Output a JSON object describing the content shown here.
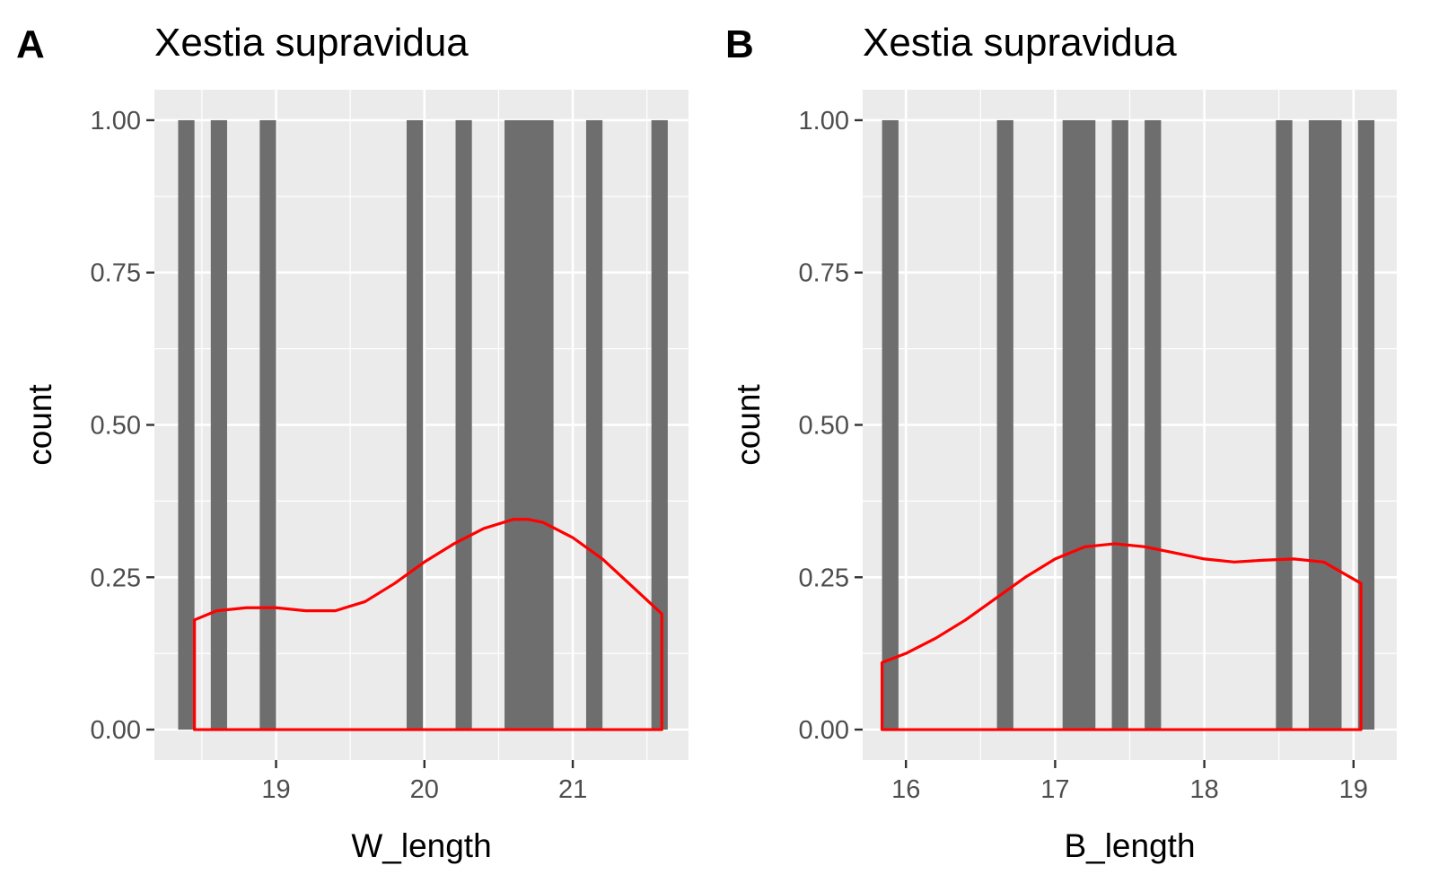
{
  "chart_data": [
    {
      "type": "bar",
      "panel_label": "A",
      "title": "Xestia supravidua",
      "xlabel": "W_length",
      "ylabel": "count",
      "xlim": [
        18.18,
        21.78
      ],
      "ylim": [
        -0.05,
        1.05
      ],
      "x_ticks": [
        19,
        20,
        21
      ],
      "y_ticks": [
        0.0,
        0.25,
        0.5,
        0.75,
        1.0
      ],
      "y_tick_labels": [
        "0.00",
        "0.25",
        "0.50",
        "0.75",
        "1.00"
      ],
      "bin_width": 0.11,
      "bars": [
        {
          "xmin": 18.34,
          "xmax": 18.45,
          "count": 1
        },
        {
          "xmin": 18.56,
          "xmax": 18.67,
          "count": 1
        },
        {
          "xmin": 18.89,
          "xmax": 19.0,
          "count": 1
        },
        {
          "xmin": 19.88,
          "xmax": 19.99,
          "count": 1
        },
        {
          "xmin": 20.21,
          "xmax": 20.32,
          "count": 1
        },
        {
          "xmin": 20.54,
          "xmax": 20.87,
          "count": 1
        },
        {
          "xmin": 21.09,
          "xmax": 21.2,
          "count": 1
        },
        {
          "xmin": 21.53,
          "xmax": 21.64,
          "count": 1
        }
      ],
      "density_line": {
        "color": "#ff0000",
        "x": [
          18.45,
          18.6,
          18.8,
          19.0,
          19.2,
          19.4,
          19.6,
          19.8,
          20.0,
          20.2,
          20.4,
          20.6,
          20.7,
          20.8,
          21.0,
          21.2,
          21.4,
          21.6
        ],
        "y": [
          0.18,
          0.195,
          0.2,
          0.2,
          0.195,
          0.195,
          0.21,
          0.24,
          0.275,
          0.305,
          0.33,
          0.345,
          0.345,
          0.34,
          0.315,
          0.28,
          0.235,
          0.19
        ]
      }
    },
    {
      "type": "bar",
      "panel_label": "B",
      "title": "Xestia supravidua",
      "xlabel": "B_length",
      "ylabel": "count",
      "xlim": [
        15.71,
        19.29
      ],
      "ylim": [
        -0.05,
        1.05
      ],
      "x_ticks": [
        16,
        17,
        18,
        19
      ],
      "y_ticks": [
        0.0,
        0.25,
        0.5,
        0.75,
        1.0
      ],
      "y_tick_labels": [
        "0.00",
        "0.25",
        "0.50",
        "0.75",
        "1.00"
      ],
      "bin_width": 0.11,
      "bars": [
        {
          "xmin": 15.84,
          "xmax": 15.95,
          "count": 1
        },
        {
          "xmin": 16.61,
          "xmax": 16.72,
          "count": 1
        },
        {
          "xmin": 17.05,
          "xmax": 17.27,
          "count": 1
        },
        {
          "xmin": 17.38,
          "xmax": 17.49,
          "count": 1
        },
        {
          "xmin": 17.6,
          "xmax": 17.71,
          "count": 1
        },
        {
          "xmin": 18.48,
          "xmax": 18.59,
          "count": 1
        },
        {
          "xmin": 18.7,
          "xmax": 18.92,
          "count": 1
        },
        {
          "xmin": 19.03,
          "xmax": 19.14,
          "count": 1
        }
      ],
      "density_line": {
        "color": "#ff0000",
        "x": [
          15.84,
          16.0,
          16.2,
          16.4,
          16.6,
          16.8,
          17.0,
          17.2,
          17.4,
          17.6,
          17.8,
          18.0,
          18.2,
          18.4,
          18.6,
          18.8,
          19.05
        ],
        "y": [
          0.11,
          0.125,
          0.15,
          0.18,
          0.215,
          0.25,
          0.28,
          0.3,
          0.305,
          0.3,
          0.29,
          0.28,
          0.275,
          0.278,
          0.28,
          0.275,
          0.24
        ]
      }
    }
  ]
}
